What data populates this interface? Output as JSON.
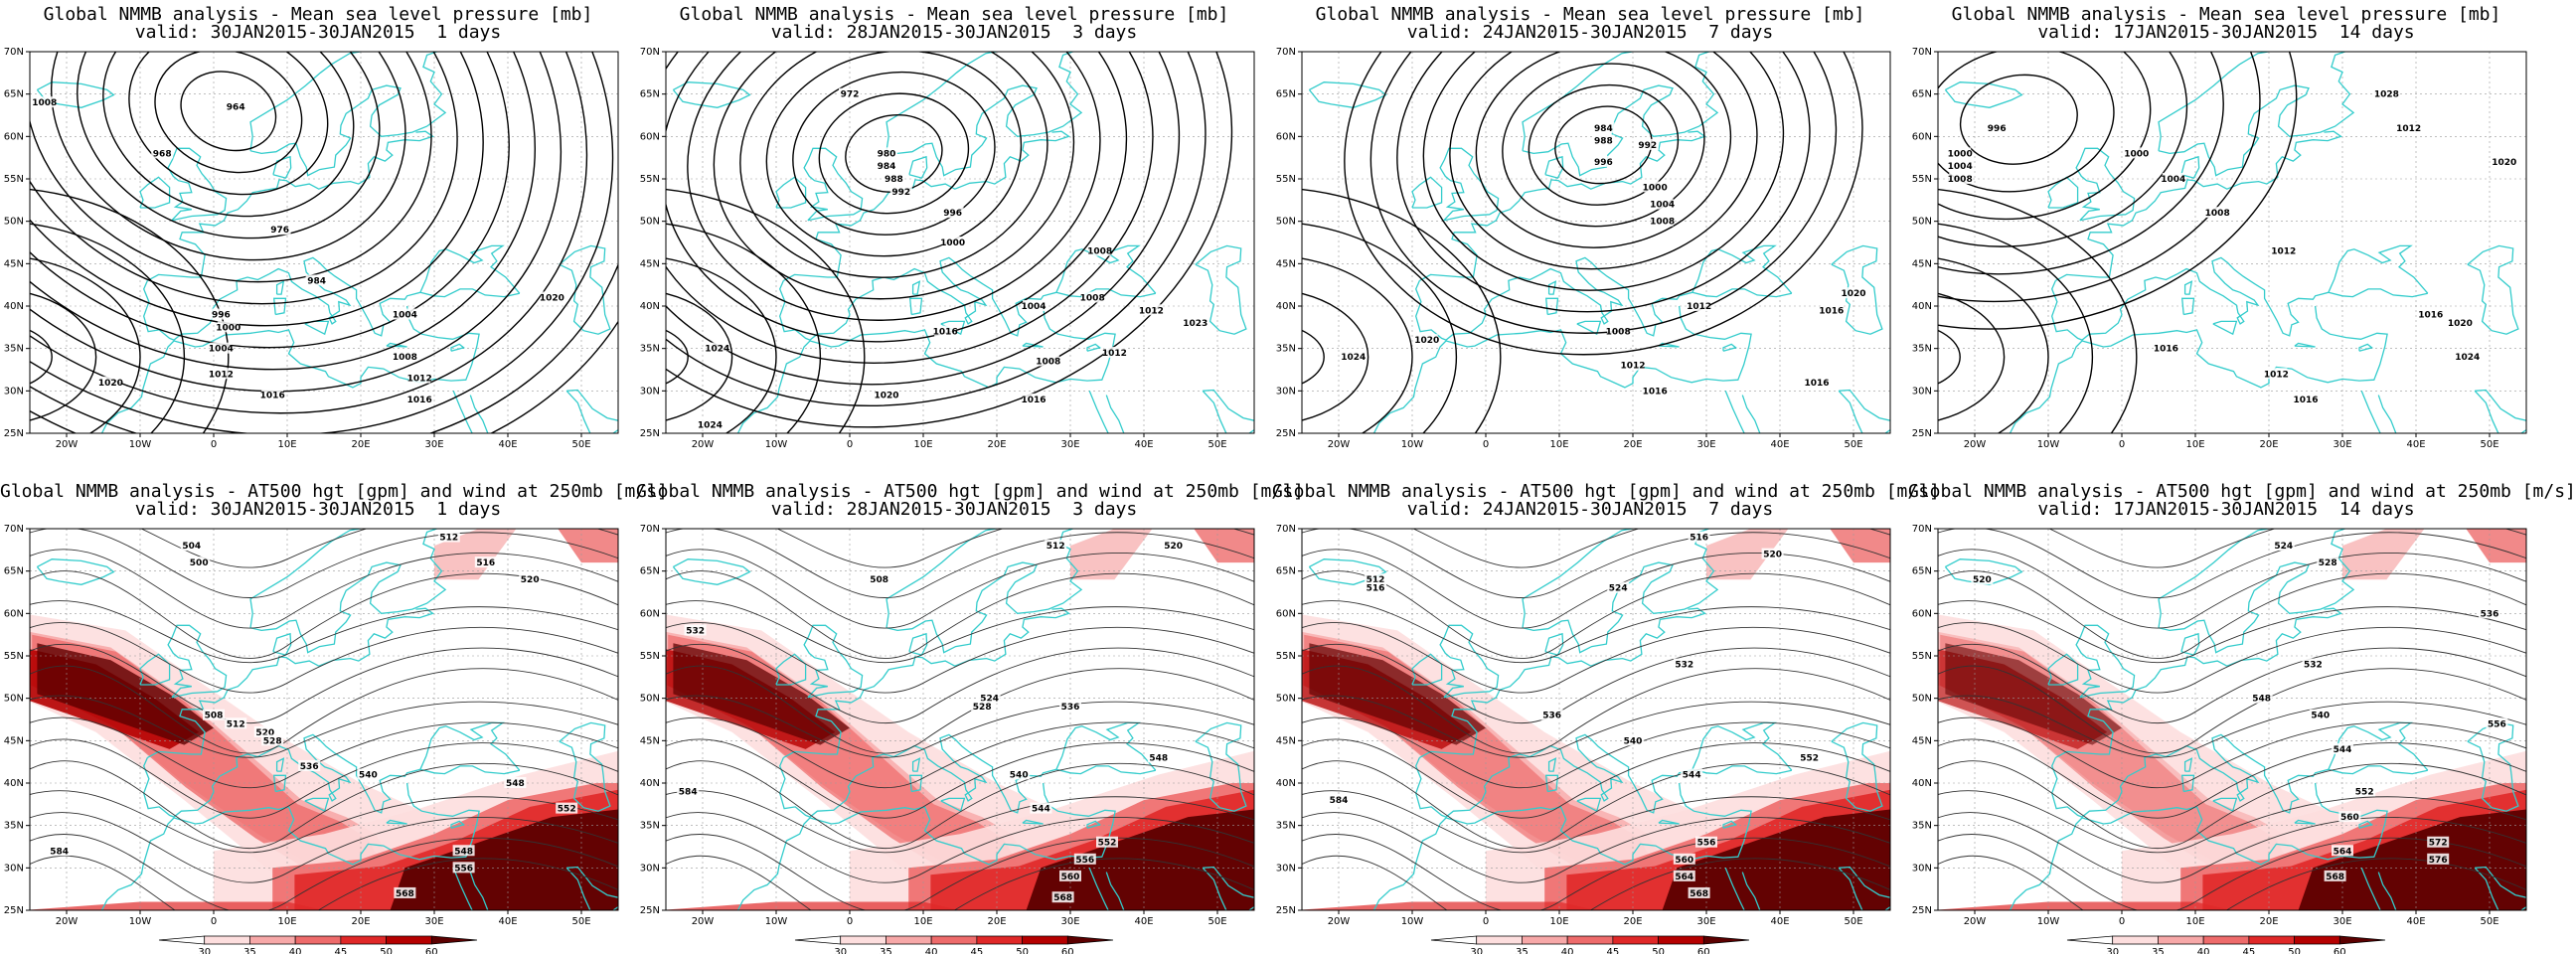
{
  "panels": [
    {
      "row": 0,
      "title": "Global NMMB analysis - Mean sea level pressure [mb]",
      "valid": "valid: 30JAN2015-30JAN2015  1 days",
      "field": "mslp"
    },
    {
      "row": 0,
      "title": "Global NMMB analysis - Mean sea level pressure [mb]",
      "valid": "valid: 28JAN2015-30JAN2015  3 days",
      "field": "mslp"
    },
    {
      "row": 0,
      "title": "Global NMMB analysis - Mean sea level pressure [mb]",
      "valid": "valid: 24JAN2015-30JAN2015  7 days",
      "field": "mslp"
    },
    {
      "row": 0,
      "title": "Global NMMB analysis - Mean sea level pressure [mb]",
      "valid": "valid: 17JAN2015-30JAN2015  14 days",
      "field": "mslp"
    },
    {
      "row": 1,
      "title": "Global NMMB analysis - AT500 hgt [gpm] and wind at 250mb [m/s]",
      "valid": "valid: 30JAN2015-30JAN2015  1 days",
      "field": "z500"
    },
    {
      "row": 1,
      "title": "Global NMMB analysis - AT500 hgt [gpm] and wind at 250mb [m/s]",
      "valid": "valid: 28JAN2015-30JAN2015  3 days",
      "field": "z500"
    },
    {
      "row": 1,
      "title": "Global NMMB analysis - AT500 hgt [gpm] and wind at 250mb [m/s]",
      "valid": "valid: 24JAN2015-30JAN2015  7 days",
      "field": "z500"
    },
    {
      "row": 1,
      "title": "Global NMMB analysis - AT500 hgt [gpm] and wind at 250mb [m/s]",
      "valid": "valid: 17JAN2015-30JAN2015  14 days",
      "field": "z500"
    }
  ],
  "axes": {
    "lon_labels": [
      "20W",
      "10W",
      "0",
      "10E",
      "20E",
      "30E",
      "40E",
      "50E"
    ],
    "lon_values": [
      -20,
      -10,
      0,
      10,
      20,
      30,
      40,
      50
    ],
    "lat_labels": [
      "25N",
      "30N",
      "35N",
      "40N",
      "45N",
      "50N",
      "55N",
      "60N",
      "65N",
      "70N"
    ],
    "lat_values": [
      25,
      30,
      35,
      40,
      45,
      50,
      55,
      60,
      65,
      70
    ],
    "lon_range": [
      -25,
      55
    ],
    "lat_range": [
      25,
      70
    ]
  },
  "colorbar": {
    "ticks": [
      "30",
      "35",
      "40",
      "45",
      "50",
      "60"
    ],
    "colors": [
      "#ffffff",
      "#fddede",
      "#f7a8a8",
      "#ee6b6b",
      "#e02828",
      "#b50000",
      "#5c0000"
    ]
  },
  "colors": {
    "coastline": "#33cccc",
    "contour": "#000000",
    "gridline": "#999999"
  },
  "contour_labels": {
    "mslp": [
      [
        {
          "v": "968",
          "lon": -7,
          "lat": 58
        },
        {
          "v": "964",
          "lon": 3,
          "lat": 63.5
        },
        {
          "v": "976",
          "lon": 9,
          "lat": 49
        },
        {
          "v": "984",
          "lon": 14,
          "lat": 43
        },
        {
          "v": "996",
          "lon": 1,
          "lat": 39
        },
        {
          "v": "1000",
          "lon": 2,
          "lat": 37.5
        },
        {
          "v": "1004",
          "lon": 1,
          "lat": 35
        },
        {
          "v": "1012",
          "lon": 1,
          "lat": 32
        },
        {
          "v": "1016",
          "lon": 8,
          "lat": 29.5
        },
        {
          "v": "1020",
          "lon": -14,
          "lat": 31
        },
        {
          "v": "1004",
          "lon": 26,
          "lat": 39
        },
        {
          "v": "1008",
          "lon": 26,
          "lat": 34
        },
        {
          "v": "1012",
          "lon": 28,
          "lat": 31.5
        },
        {
          "v": "1016",
          "lon": 28,
          "lat": 29
        },
        {
          "v": "1020",
          "lon": 46,
          "lat": 41
        },
        {
          "v": "1008",
          "lon": -23,
          "lat": 64
        }
      ],
      [
        {
          "v": "972",
          "lon": 0,
          "lat": 65
        },
        {
          "v": "980",
          "lon": 5,
          "lat": 58
        },
        {
          "v": "984",
          "lon": 5,
          "lat": 56.5
        },
        {
          "v": "988",
          "lon": 6,
          "lat": 55
        },
        {
          "v": "992",
          "lon": 7,
          "lat": 53.5
        },
        {
          "v": "996",
          "lon": 14,
          "lat": 51
        },
        {
          "v": "1000",
          "lon": 14,
          "lat": 47.5
        },
        {
          "v": "1008",
          "lon": 34,
          "lat": 46.5
        },
        {
          "v": "1004",
          "lon": 25,
          "lat": 40
        },
        {
          "v": "1008",
          "lon": 33,
          "lat": 41
        },
        {
          "v": "1012",
          "lon": 41,
          "lat": 39.5
        },
        {
          "v": "1016",
          "lon": 13,
          "lat": 37
        },
        {
          "v": "1020",
          "lon": 5,
          "lat": 29.5
        },
        {
          "v": "1024",
          "lon": -18,
          "lat": 35
        },
        {
          "v": "1008",
          "lon": 27,
          "lat": 33.5
        },
        {
          "v": "1012",
          "lon": 36,
          "lat": 34.5
        },
        {
          "v": "1016",
          "lon": 25,
          "lat": 29
        },
        {
          "v": "1024",
          "lon": -19,
          "lat": 26
        },
        {
          "v": "1023",
          "lon": 47,
          "lat": 38
        }
      ],
      [
        {
          "v": "984",
          "lon": 16,
          "lat": 61
        },
        {
          "v": "988",
          "lon": 16,
          "lat": 59.5
        },
        {
          "v": "992",
          "lon": 22,
          "lat": 59
        },
        {
          "v": "996",
          "lon": 16,
          "lat": 57
        },
        {
          "v": "1000",
          "lon": 23,
          "lat": 54
        },
        {
          "v": "1004",
          "lon": 24,
          "lat": 52
        },
        {
          "v": "1008",
          "lon": 24,
          "lat": 50
        },
        {
          "v": "1012",
          "lon": 29,
          "lat": 40
        },
        {
          "v": "1016",
          "lon": 47,
          "lat": 39.5
        },
        {
          "v": "1020",
          "lon": 50,
          "lat": 41.5
        },
        {
          "v": "1024",
          "lon": -18,
          "lat": 34
        },
        {
          "v": "1020",
          "lon": -8,
          "lat": 36
        },
        {
          "v": "1008",
          "lon": 18,
          "lat": 37
        },
        {
          "v": "1012",
          "lon": 20,
          "lat": 33
        },
        {
          "v": "1016",
          "lon": 23,
          "lat": 30
        },
        {
          "v": "1016",
          "lon": 45,
          "lat": 31
        }
      ],
      [
        {
          "v": "996",
          "lon": -17,
          "lat": 61
        },
        {
          "v": "1000",
          "lon": -22,
          "lat": 58
        },
        {
          "v": "1004",
          "lon": -22,
          "lat": 56.5
        },
        {
          "v": "1008",
          "lon": -22,
          "lat": 55
        },
        {
          "v": "1000",
          "lon": 2,
          "lat": 58
        },
        {
          "v": "1004",
          "lon": 7,
          "lat": 55
        },
        {
          "v": "1008",
          "lon": 13,
          "lat": 51
        },
        {
          "v": "1012",
          "lon": 22,
          "lat": 46.5
        },
        {
          "v": "1016",
          "lon": 42,
          "lat": 39
        },
        {
          "v": "1020",
          "lon": 46,
          "lat": 38
        },
        {
          "v": "1024",
          "lon": 47,
          "lat": 34
        },
        {
          "v": "1016",
          "lon": 6,
          "lat": 35
        },
        {
          "v": "1012",
          "lon": 21,
          "lat": 32
        },
        {
          "v": "1016",
          "lon": 25,
          "lat": 29
        },
        {
          "v": "1028",
          "lon": 36,
          "lat": 65
        },
        {
          "v": "1012",
          "lon": 39,
          "lat": 61
        },
        {
          "v": "1020",
          "lon": 52,
          "lat": 57
        }
      ]
    ],
    "z500": [
      [
        {
          "v": "504",
          "lon": -3,
          "lat": 68
        },
        {
          "v": "500",
          "lon": -2,
          "lat": 66
        },
        {
          "v": "512",
          "lon": 32,
          "lat": 69
        },
        {
          "v": "516",
          "lon": 37,
          "lat": 66
        },
        {
          "v": "520",
          "lon": 43,
          "lat": 64
        },
        {
          "v": "508",
          "lon": 0,
          "lat": 48
        },
        {
          "v": "512",
          "lon": 3,
          "lat": 47
        },
        {
          "v": "520",
          "lon": 7,
          "lat": 46
        },
        {
          "v": "528",
          "lon": 8,
          "lat": 45
        },
        {
          "v": "536",
          "lon": 13,
          "lat": 42
        },
        {
          "v": "540",
          "lon": 21,
          "lat": 41
        },
        {
          "v": "548",
          "lon": 41,
          "lat": 40
        },
        {
          "v": "552",
          "lon": 48,
          "lat": 37
        },
        {
          "v": "548",
          "lon": 34,
          "lat": 32
        },
        {
          "v": "556",
          "lon": 34,
          "lat": 30
        },
        {
          "v": "568",
          "lon": 26,
          "lat": 27
        },
        {
          "v": "584",
          "lon": -21,
          "lat": 32
        }
      ],
      [
        {
          "v": "508",
          "lon": 4,
          "lat": 64
        },
        {
          "v": "512",
          "lon": 28,
          "lat": 68
        },
        {
          "v": "520",
          "lon": 44,
          "lat": 68
        },
        {
          "v": "532",
          "lon": -21,
          "lat": 58
        },
        {
          "v": "524",
          "lon": 19,
          "lat": 50
        },
        {
          "v": "528",
          "lon": 18,
          "lat": 49
        },
        {
          "v": "536",
          "lon": 30,
          "lat": 49
        },
        {
          "v": "540",
          "lon": 23,
          "lat": 41
        },
        {
          "v": "544",
          "lon": 26,
          "lat": 37
        },
        {
          "v": "548",
          "lon": 42,
          "lat": 43
        },
        {
          "v": "552",
          "lon": 35,
          "lat": 33
        },
        {
          "v": "556",
          "lon": 32,
          "lat": 31
        },
        {
          "v": "560",
          "lon": 30,
          "lat": 29
        },
        {
          "v": "568",
          "lon": 29,
          "lat": 26.5
        },
        {
          "v": "584",
          "lon": -22,
          "lat": 39
        }
      ],
      [
        {
          "v": "516",
          "lon": 29,
          "lat": 69
        },
        {
          "v": "520",
          "lon": 39,
          "lat": 67
        },
        {
          "v": "524",
          "lon": 18,
          "lat": 63
        },
        {
          "v": "512",
          "lon": -15,
          "lat": 64
        },
        {
          "v": "516",
          "lon": -15,
          "lat": 63
        },
        {
          "v": "532",
          "lon": 27,
          "lat": 54
        },
        {
          "v": "536",
          "lon": 9,
          "lat": 48
        },
        {
          "v": "540",
          "lon": 20,
          "lat": 45
        },
        {
          "v": "544",
          "lon": 28,
          "lat": 41
        },
        {
          "v": "552",
          "lon": 44,
          "lat": 43
        },
        {
          "v": "556",
          "lon": 30,
          "lat": 33
        },
        {
          "v": "560",
          "lon": 27,
          "lat": 31
        },
        {
          "v": "564",
          "lon": 27,
          "lat": 29
        },
        {
          "v": "568",
          "lon": 29,
          "lat": 27
        },
        {
          "v": "584",
          "lon": -20,
          "lat": 38
        }
      ],
      [
        {
          "v": "524",
          "lon": 22,
          "lat": 68
        },
        {
          "v": "528",
          "lon": 28,
          "lat": 66
        },
        {
          "v": "520",
          "lon": -19,
          "lat": 64
        },
        {
          "v": "536",
          "lon": 50,
          "lat": 60
        },
        {
          "v": "532",
          "lon": 26,
          "lat": 54
        },
        {
          "v": "540",
          "lon": 27,
          "lat": 48
        },
        {
          "v": "544",
          "lon": 30,
          "lat": 44
        },
        {
          "v": "548",
          "lon": 19,
          "lat": 50
        },
        {
          "v": "552",
          "lon": 33,
          "lat": 39
        },
        {
          "v": "556",
          "lon": 51,
          "lat": 47
        },
        {
          "v": "560",
          "lon": 31,
          "lat": 36
        },
        {
          "v": "564",
          "lon": 30,
          "lat": 32
        },
        {
          "v": "568",
          "lon": 29,
          "lat": 29
        },
        {
          "v": "572",
          "lon": 43,
          "lat": 33
        },
        {
          "v": "576",
          "lon": 43,
          "lat": 31
        }
      ]
    ]
  }
}
